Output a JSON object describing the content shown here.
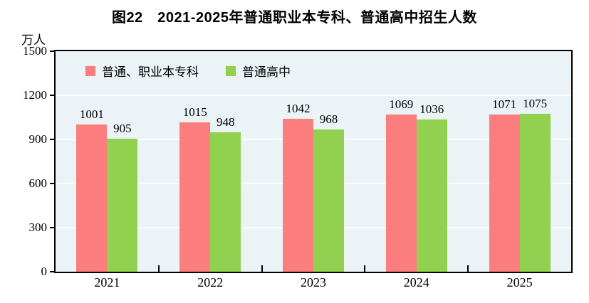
{
  "title": "图22　2021-2025年普通职业本专科、普通高中招生人数",
  "y_axis": {
    "unit": "万人",
    "tick_labels": [
      "1500",
      "1200",
      "900",
      "600",
      "300",
      "0"
    ],
    "max": 1500,
    "step": 300
  },
  "x_axis": {
    "tick_labels": [
      "2021",
      "2022",
      "2023",
      "2024",
      "2025"
    ]
  },
  "legend": {
    "items": [
      {
        "label": "普通、职业本专科",
        "color": "#FB7D7D"
      },
      {
        "label": "普通高中",
        "color": "#92D050"
      }
    ]
  },
  "colors": {
    "series1": "#FB7D7D",
    "series2": "#92D050",
    "plot_background": "#ECF3F7",
    "gridline": "#FFFFFF",
    "axis": "#000000",
    "page_background": "#FFFFFF",
    "text": "#000000"
  },
  "chart_data": {
    "type": "bar",
    "title": "图22　2021-2025年普通职业本专科、普通高中招生人数",
    "categories": [
      "2021",
      "2022",
      "2023",
      "2024",
      "2025"
    ],
    "series": [
      {
        "name": "普通、职业本专科",
        "color": "#FB7D7D",
        "values": [
          1001,
          1015,
          1042,
          1069,
          1071
        ]
      },
      {
        "name": "普通高中",
        "color": "#92D050",
        "values": [
          905,
          948,
          968,
          1036,
          1075
        ]
      }
    ],
    "xlabel": "",
    "ylabel": "万人",
    "ylim": [
      0,
      1500
    ],
    "ytick_step": 300,
    "grid": true,
    "grid_color": "#FFFFFF",
    "plot_background": "#ECF3F7",
    "legend_position": "top-left-inside",
    "data_labels": true
  }
}
